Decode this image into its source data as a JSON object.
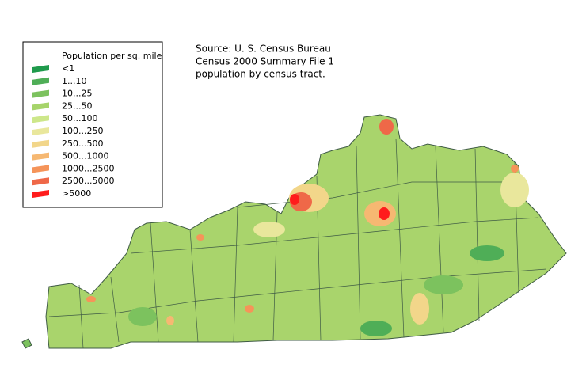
{
  "legend": {
    "title": "Population per sq. mile",
    "items": [
      {
        "label": "<1",
        "color": "#1f9a4c"
      },
      {
        "label": "1...10",
        "color": "#4fae57"
      },
      {
        "label": "10...25",
        "color": "#7cc25e"
      },
      {
        "label": "25...50",
        "color": "#a6d46a"
      },
      {
        "label": "50...100",
        "color": "#cde78a"
      },
      {
        "label": "100...250",
        "color": "#e9e79c"
      },
      {
        "label": "250...500",
        "color": "#f2d68a"
      },
      {
        "label": "500...1000",
        "color": "#f6b872"
      },
      {
        "label": "1000...2500",
        "color": "#f59459"
      },
      {
        "label": "2500...5000",
        "color": "#ef6848"
      },
      {
        "label": ">5000",
        "color": "#ff1c1c"
      }
    ]
  },
  "source": {
    "lines": [
      "Source: U. S. Census Bureau",
      "Census 2000 Summary File 1",
      "population by census tract."
    ]
  }
}
